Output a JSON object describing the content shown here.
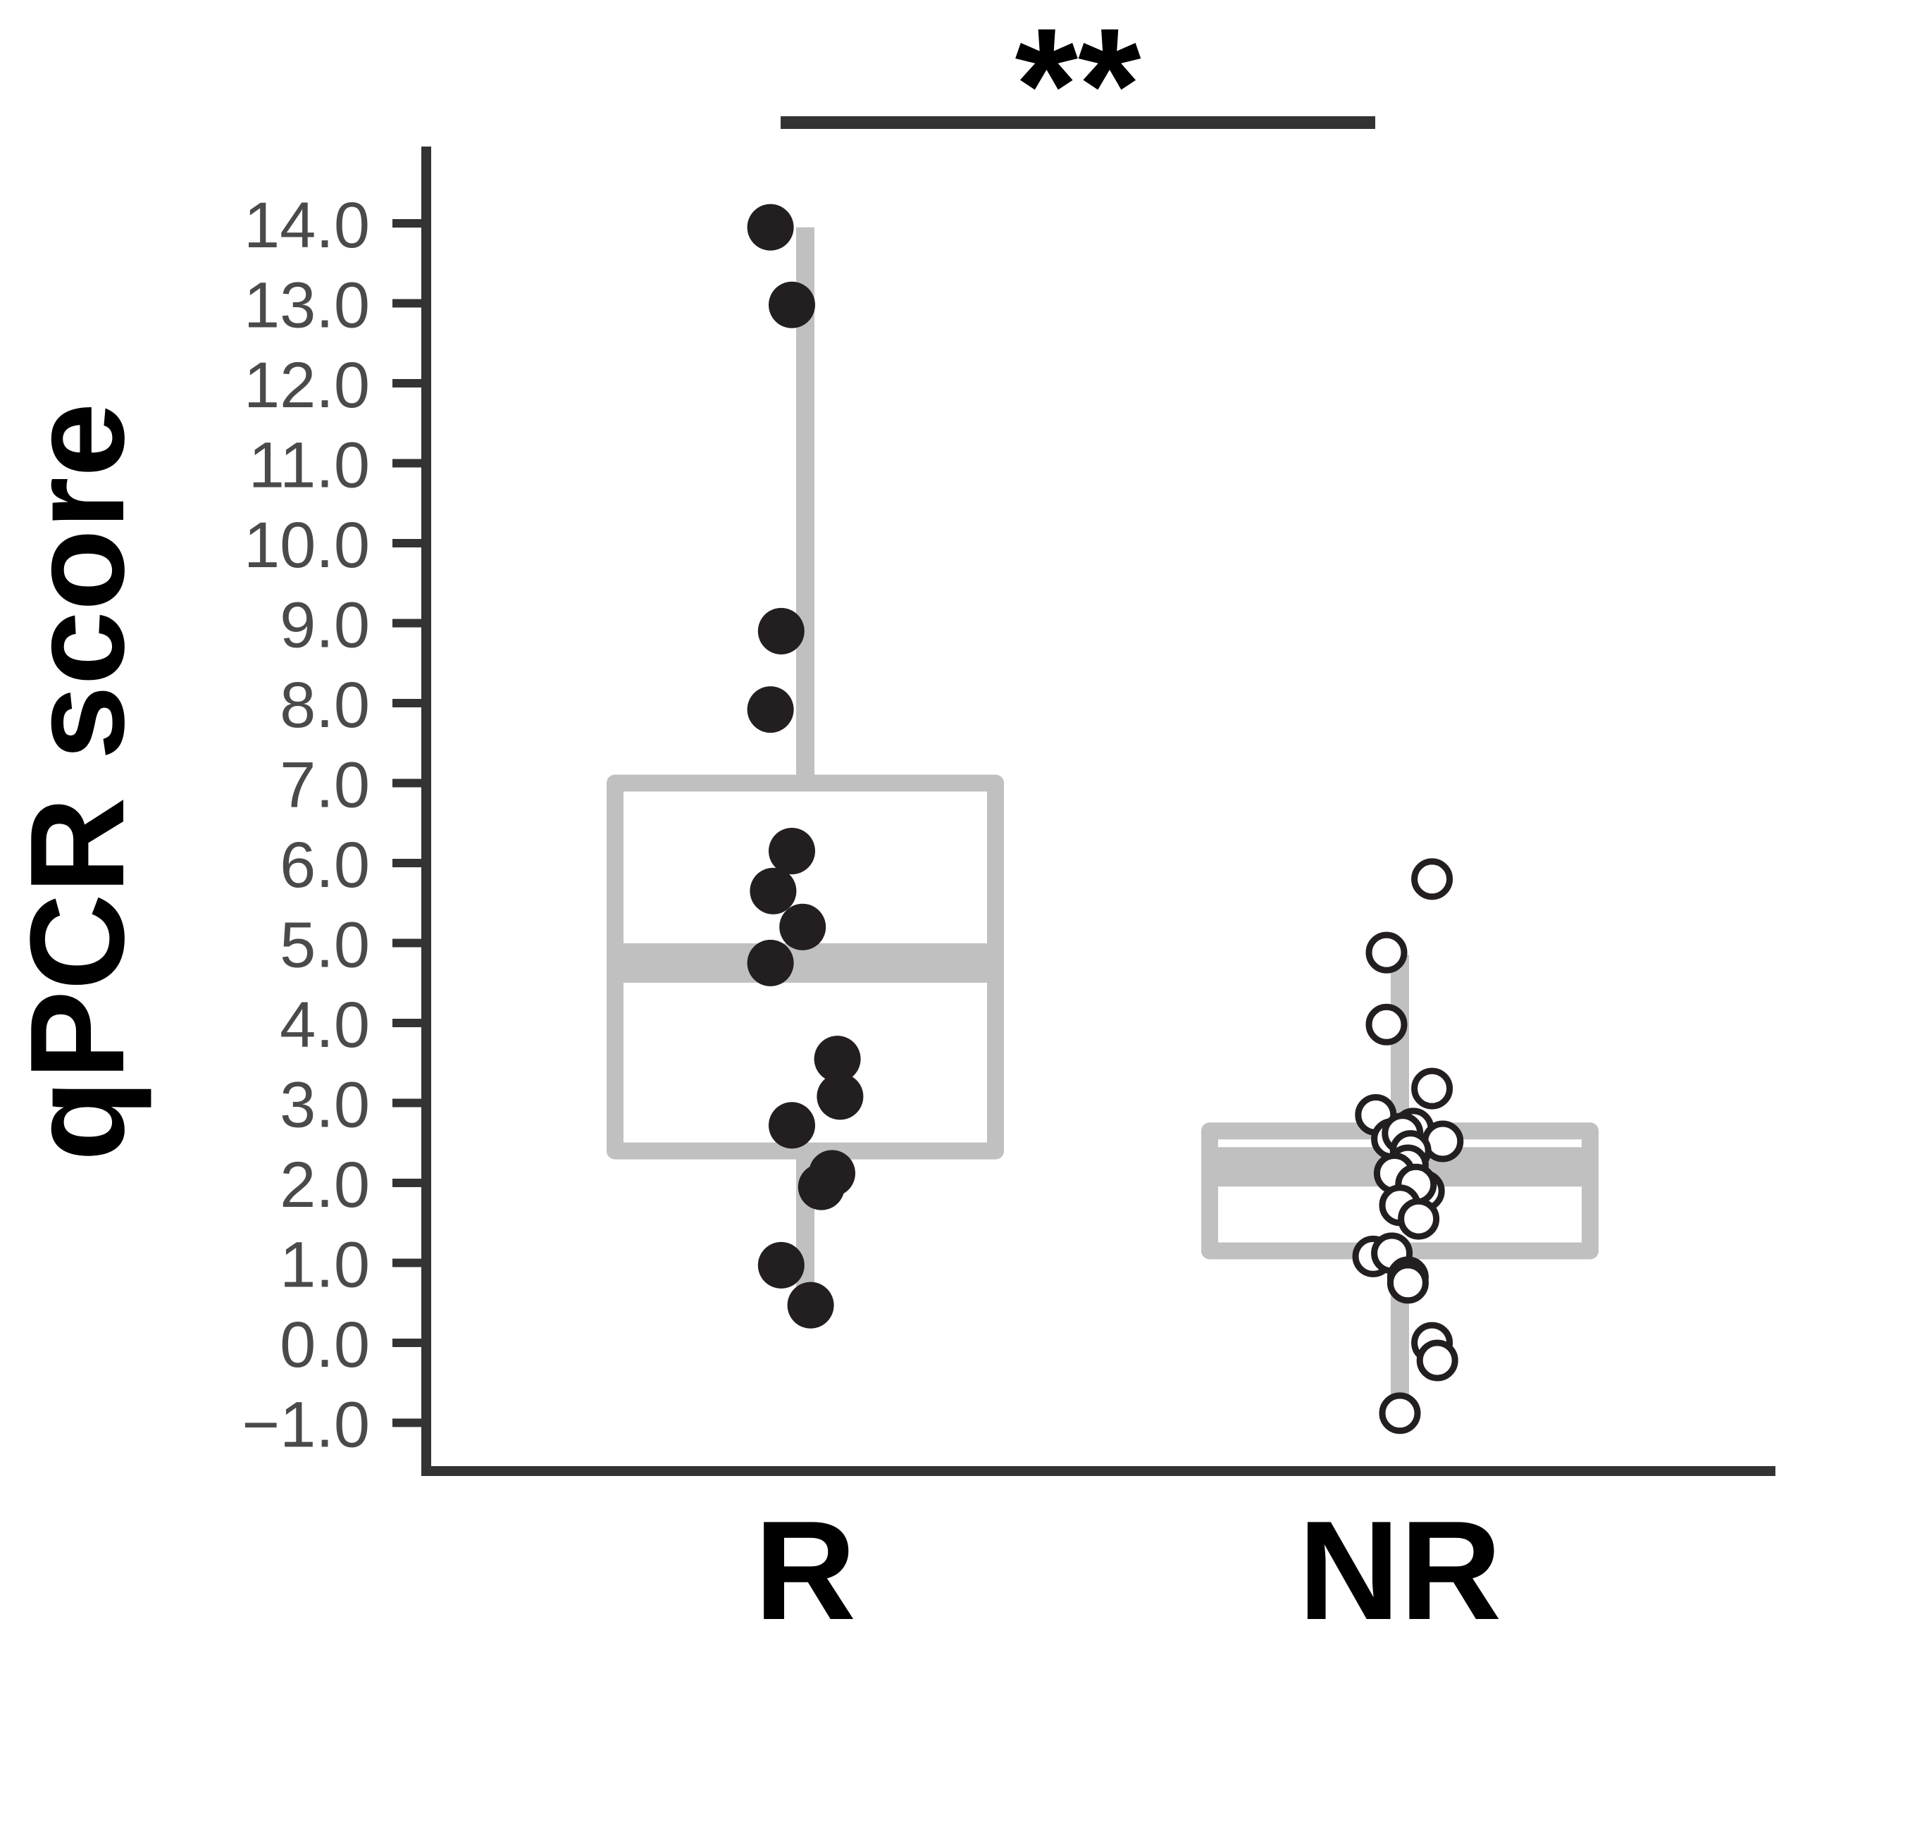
{
  "chart_data": {
    "type": "box",
    "title": "",
    "xlabel": "",
    "ylabel": "qPCR score",
    "ylim": [
      -1.6,
      15.0
    ],
    "yticks": [
      -1.0,
      0.0,
      1.0,
      2.0,
      3.0,
      4.0,
      5.0,
      6.0,
      7.0,
      8.0,
      9.0,
      10.0,
      11.0,
      12.0,
      13.0,
      14.0
    ],
    "ytick_labels": [
      "−1.0",
      "0.0",
      "1.0",
      "2.0",
      "3.0",
      "4.0",
      "5.0",
      "6.0",
      "7.0",
      "8.0",
      "9.0",
      "10.0",
      "11.0",
      "12.0",
      "13.0",
      "14.0"
    ],
    "categories": [
      "R",
      "NR"
    ],
    "groups": [
      {
        "category": "R",
        "marker": "filled",
        "box": {
          "whisker_low": 0.6,
          "q1": 2.4,
          "median": 4.75,
          "q3": 7.0,
          "whisker_high": 13.95
        },
        "points": [
          {
            "jitter": -0.13,
            "y": 13.95
          },
          {
            "jitter": -0.05,
            "y": 12.98
          },
          {
            "jitter": -0.09,
            "y": 8.9
          },
          {
            "jitter": -0.13,
            "y": 7.92
          },
          {
            "jitter": -0.05,
            "y": 6.15
          },
          {
            "jitter": -0.12,
            "y": 5.65
          },
          {
            "jitter": -0.01,
            "y": 5.2
          },
          {
            "jitter": -0.13,
            "y": 4.75
          },
          {
            "jitter": 0.12,
            "y": 3.55
          },
          {
            "jitter": 0.13,
            "y": 3.08
          },
          {
            "jitter": -0.05,
            "y": 2.72
          },
          {
            "jitter": 0.1,
            "y": 2.12
          },
          {
            "jitter": 0.06,
            "y": 1.95
          },
          {
            "jitter": -0.09,
            "y": 0.97
          },
          {
            "jitter": 0.02,
            "y": 0.47
          }
        ]
      },
      {
        "category": "NR",
        "marker": "open",
        "box": {
          "whisker_low": -0.85,
          "q1": 1.15,
          "median": 2.2,
          "q3": 2.65,
          "whisker_high": 4.85
        },
        "points": [
          {
            "jitter": 0.12,
            "y": 5.8
          },
          {
            "jitter": -0.05,
            "y": 4.88
          },
          {
            "jitter": -0.05,
            "y": 3.98
          },
          {
            "jitter": 0.12,
            "y": 3.18
          },
          {
            "jitter": -0.09,
            "y": 2.85
          },
          {
            "jitter": 0.05,
            "y": 2.68
          },
          {
            "jitter": -0.03,
            "y": 2.55
          },
          {
            "jitter": 0.16,
            "y": 2.52
          },
          {
            "jitter": 0.01,
            "y": 2.62
          },
          {
            "jitter": 0.04,
            "y": 2.4
          },
          {
            "jitter": 0.03,
            "y": 2.22
          },
          {
            "jitter": -0.02,
            "y": 2.12
          },
          {
            "jitter": 0.09,
            "y": 1.9
          },
          {
            "jitter": 0.06,
            "y": 1.98
          },
          {
            "jitter": 0.0,
            "y": 1.72
          },
          {
            "jitter": 0.07,
            "y": 1.55
          },
          {
            "jitter": -0.1,
            "y": 1.08
          },
          {
            "jitter": -0.03,
            "y": 1.12
          },
          {
            "jitter": 0.03,
            "y": 0.82
          },
          {
            "jitter": 0.03,
            "y": 0.75
          },
          {
            "jitter": 0.12,
            "y": 0.0
          },
          {
            "jitter": 0.14,
            "y": -0.22
          },
          {
            "jitter": 0.0,
            "y": -0.88
          }
        ]
      }
    ],
    "significance": {
      "between": [
        "R",
        "NR"
      ],
      "label": "**"
    },
    "grid": false,
    "legend": "none"
  }
}
